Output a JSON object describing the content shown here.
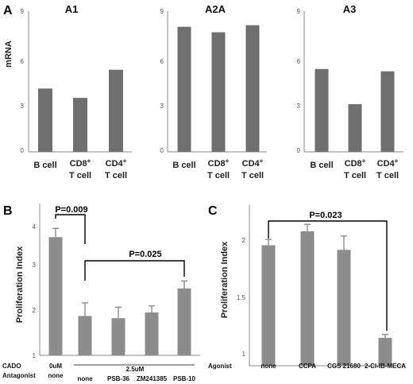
{
  "panels": {
    "A": "A",
    "B": "B",
    "C": "C"
  },
  "chart_data": [
    {
      "id": "A1",
      "type": "bar",
      "title": "A1",
      "ylabel": "mRNA",
      "ylim": [
        0,
        9
      ],
      "yticks": [
        "0",
        "3",
        "6",
        "9"
      ],
      "categories": [
        {
          "line1": "B cell",
          "sup": "",
          "line2": ""
        },
        {
          "line1": "CD8",
          "sup": "+",
          "line2": "T cell"
        },
        {
          "line1": "CD4",
          "sup": "+",
          "line2": "T cell"
        }
      ],
      "values": [
        4.05,
        3.45,
        5.25
      ],
      "color": "#6f6f6f"
    },
    {
      "id": "A2A",
      "type": "bar",
      "title": "A2A",
      "ylabel": "",
      "ylim": [
        0,
        9
      ],
      "yticks": [
        "0",
        "3",
        "6",
        "9"
      ],
      "categories": [
        {
          "line1": "B cell",
          "sup": "",
          "line2": ""
        },
        {
          "line1": "CD8",
          "sup": "+",
          "line2": "T cell"
        },
        {
          "line1": "CD4",
          "sup": "+",
          "line2": "T cell"
        }
      ],
      "values": [
        8.0,
        7.65,
        8.1
      ],
      "color": "#6f6f6f"
    },
    {
      "id": "A3",
      "type": "bar",
      "title": "A3",
      "ylabel": "",
      "ylim": [
        0,
        9
      ],
      "yticks": [
        "0",
        "3",
        "6",
        "9"
      ],
      "categories": [
        {
          "line1": "B cell",
          "sup": "",
          "line2": ""
        },
        {
          "line1": "CD8",
          "sup": "+",
          "line2": "T cell"
        },
        {
          "line1": "CD4",
          "sup": "+",
          "line2": "T cell"
        }
      ],
      "values": [
        5.3,
        3.05,
        5.15
      ],
      "color": "#6f6f6f"
    },
    {
      "id": "B",
      "type": "bar",
      "ylabel": "Proliferation Index",
      "ylim": [
        1,
        4.25
      ],
      "yticks": [
        "1",
        "2",
        "3",
        "4"
      ],
      "values": [
        3.7,
        1.9,
        1.85,
        1.98,
        2.53
      ],
      "errors": [
        0.2,
        0.3,
        0.25,
        0.15,
        0.17
      ],
      "color": "#8c8c8c",
      "row_labels": {
        "cado": "CADO",
        "antagonist": "Antagonist"
      },
      "cado_values": [
        "0uM",
        "2.5uM"
      ],
      "antagonists": [
        "none",
        "none",
        "PSB-36",
        "ZM241385",
        "PSB-10"
      ],
      "annotations": [
        "P=0.009",
        "P=0.025"
      ]
    },
    {
      "id": "C",
      "type": "bar",
      "ylabel": "Proliferation Index",
      "ylim": [
        0.9,
        2.3
      ],
      "yticks": [
        "1",
        "1.5",
        "2"
      ],
      "row_label": "Agonist",
      "categories": [
        "none",
        "CCPA",
        "CGS 21680",
        "2-Cl-IB-MECA"
      ],
      "values": [
        1.94,
        2.06,
        1.9,
        1.14
      ],
      "errors": [
        0.05,
        0.06,
        0.12,
        0.03
      ],
      "color": "#8c8c8c",
      "annotations": [
        "P=0.023"
      ]
    }
  ]
}
